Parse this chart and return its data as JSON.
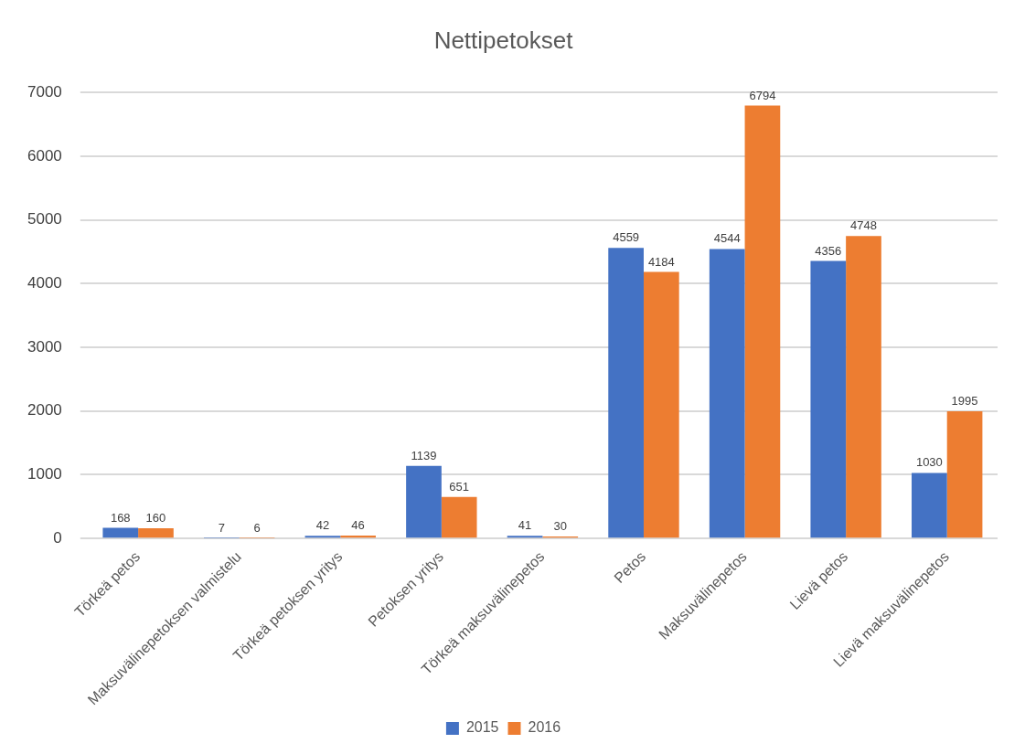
{
  "chart_data": {
    "type": "bar",
    "title": "Nettipetokset",
    "categories": [
      "Törkeä petos",
      "Maksuvälinepetoksen valmistelu",
      "Törkeä petoksen yritys",
      "Petoksen yritys",
      "Törkeä maksuvälinepetos",
      "Petos",
      "Maksuvälinepetos",
      "Lievä petos",
      "Lievä maksuvälinepetos"
    ],
    "series": [
      {
        "name": "2015",
        "color": "#4472c4",
        "values": [
          168,
          7,
          42,
          1139,
          41,
          4559,
          4544,
          4356,
          1030
        ]
      },
      {
        "name": "2016",
        "color": "#ed7d31",
        "values": [
          160,
          6,
          46,
          651,
          30,
          4184,
          6794,
          4748,
          1995
        ]
      }
    ],
    "ylim": [
      0,
      7000
    ],
    "yticks": [
      0,
      1000,
      2000,
      3000,
      4000,
      5000,
      6000,
      7000
    ],
    "grid": "y",
    "legend": "bottom",
    "data_labels": true
  }
}
